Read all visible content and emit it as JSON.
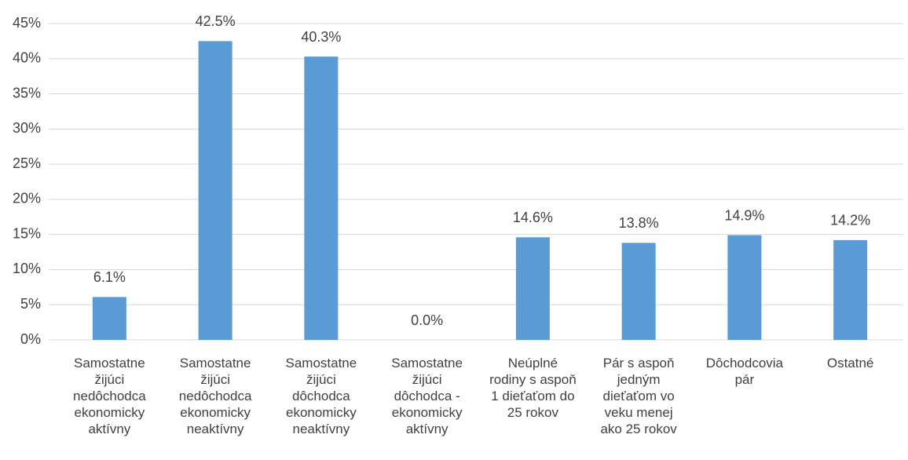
{
  "chart_data": {
    "type": "bar",
    "categories": [
      "Samostatne žijúci nedôchodca ekonomicky aktívny",
      "Samostatne žijúci nedôchodca ekonomicky neaktívny",
      "Samostatne žijúci dôchodca ekonomicky neaktívny",
      "Samostatne žijúci dôchodca - ekonomicky aktívny",
      "Neúplné rodiny s aspoň 1 dieťaťom do 25 rokov",
      "Pár s aspoň jedným dieťaťom vo veku menej ako 25 rokov",
      "Dôchodcovia pár",
      "Ostatné"
    ],
    "values": [
      6.1,
      42.5,
      40.3,
      0.0,
      14.6,
      13.8,
      14.9,
      14.2
    ],
    "value_labels": [
      "6.1%",
      "42.5%",
      "40.3%",
      "0.0%",
      "14.6%",
      "13.8%",
      "14.9%",
      "14.2%"
    ],
    "color": "#5b9bd5",
    "ylim": [
      0,
      45
    ],
    "yticks": [
      {
        "value": 0,
        "label": "0%"
      },
      {
        "value": 5,
        "label": "5%"
      },
      {
        "value": 10,
        "label": "10%"
      },
      {
        "value": 15,
        "label": "15%"
      },
      {
        "value": 20,
        "label": "20%"
      },
      {
        "value": 25,
        "label": "25%"
      },
      {
        "value": 30,
        "label": "30%"
      },
      {
        "value": 35,
        "label": "35%"
      },
      {
        "value": 40,
        "label": "40%"
      },
      {
        "value": 45,
        "label": "45%"
      }
    ],
    "grid": true
  }
}
